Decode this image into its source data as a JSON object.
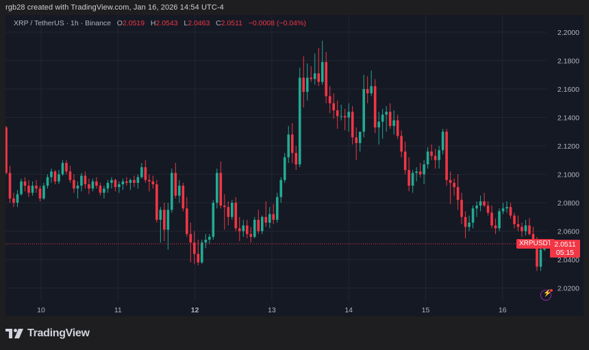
{
  "credit": "rgb28 created with TradingView.com, Jan 16, 2026 14:54 UTC-4",
  "legend": {
    "symbol": "XRP / TetherUS · 1h · Binance",
    "o_label": "O",
    "o": "2.0519",
    "h_label": "H",
    "h": "2.0543",
    "l_label": "L",
    "l": "2.0463",
    "c_label": "C",
    "c": "2.0511",
    "change": "−0.0008 (−0.04%)"
  },
  "last_price": {
    "symbol_tag": "XRPUSDT",
    "price": "2.0511",
    "countdown": "05:15"
  },
  "brand": "TradingView",
  "colors": {
    "up": "#22ab94",
    "down": "#f23645",
    "background": "#151924",
    "page": "#1e1e20",
    "grid": "#232632",
    "text": "#b2b5be"
  },
  "chart_data": {
    "type": "candlestick",
    "title": "XRP / TetherUS · 1h · Binance",
    "xlabel": "",
    "ylabel": "",
    "x_ticks": [
      "10",
      "11",
      "12",
      "13",
      "14",
      "15",
      "16"
    ],
    "y_ticks": [
      "2.2000",
      "2.1800",
      "2.1600",
      "2.1400",
      "2.1200",
      "2.1000",
      "2.0800",
      "2.0600",
      "2.0400",
      "2.0200"
    ],
    "ylim": [
      2.008,
      2.204
    ],
    "grid": true,
    "last_price": 2.0511,
    "candles_approx_path": [
      [
        2.133,
        2.134,
        2.1,
        2.101
      ],
      [
        2.101,
        2.106,
        2.08,
        2.083
      ],
      [
        2.083,
        2.087,
        2.077,
        2.08
      ],
      [
        2.08,
        2.089,
        2.077,
        2.086
      ],
      [
        2.086,
        2.097,
        2.085,
        2.095
      ],
      [
        2.095,
        2.098,
        2.088,
        2.092
      ],
      [
        2.092,
        2.096,
        2.084,
        2.087
      ],
      [
        2.087,
        2.095,
        2.085,
        2.092
      ],
      [
        2.092,
        2.096,
        2.087,
        2.09
      ],
      [
        2.09,
        2.092,
        2.081,
        2.083
      ],
      [
        2.083,
        2.094,
        2.082,
        2.092
      ],
      [
        2.092,
        2.1,
        2.09,
        2.098
      ],
      [
        2.098,
        2.104,
        2.094,
        2.102
      ],
      [
        2.102,
        2.103,
        2.093,
        2.095
      ],
      [
        2.095,
        2.103,
        2.093,
        2.1
      ],
      [
        2.1,
        2.11,
        2.099,
        2.108
      ],
      [
        2.108,
        2.11,
        2.1,
        2.102
      ],
      [
        2.102,
        2.106,
        2.094,
        2.096
      ],
      [
        2.096,
        2.1,
        2.087,
        2.09
      ],
      [
        2.09,
        2.095,
        2.083,
        2.092
      ],
      [
        2.092,
        2.101,
        2.088,
        2.099
      ],
      [
        2.099,
        2.102,
        2.09,
        2.093
      ],
      [
        2.093,
        2.097,
        2.086,
        2.09
      ],
      [
        2.09,
        2.097,
        2.088,
        2.095
      ],
      [
        2.095,
        2.098,
        2.09,
        2.092
      ],
      [
        2.092,
        2.094,
        2.085,
        2.087
      ],
      [
        2.087,
        2.092,
        2.083,
        2.09
      ],
      [
        2.09,
        2.096,
        2.087,
        2.094
      ],
      [
        2.094,
        2.098,
        2.09,
        2.096
      ],
      [
        2.096,
        2.097,
        2.088,
        2.091
      ],
      [
        2.091,
        2.095,
        2.087,
        2.093
      ],
      [
        2.093,
        2.097,
        2.089,
        2.095
      ],
      [
        2.095,
        2.098,
        2.092,
        2.094
      ],
      [
        2.094,
        2.097,
        2.089,
        2.096
      ],
      [
        2.096,
        2.099,
        2.091,
        2.094
      ],
      [
        2.094,
        2.1,
        2.09,
        2.098
      ],
      [
        2.098,
        2.108,
        2.097,
        2.105
      ],
      [
        2.105,
        2.11,
        2.094,
        2.096
      ],
      [
        2.096,
        2.1,
        2.088,
        2.095
      ],
      [
        2.095,
        2.099,
        2.09,
        2.093
      ],
      [
        2.093,
        2.096,
        2.066,
        2.068
      ],
      [
        2.068,
        2.077,
        2.052,
        2.075
      ],
      [
        2.075,
        2.08,
        2.053,
        2.061
      ],
      [
        2.061,
        2.08,
        2.047,
        2.075
      ],
      [
        2.075,
        2.104,
        2.073,
        2.101
      ],
      [
        2.101,
        2.108,
        2.083,
        2.085
      ],
      [
        2.085,
        2.096,
        2.08,
        2.092
      ],
      [
        2.092,
        2.094,
        2.074,
        2.076
      ],
      [
        2.076,
        2.084,
        2.056,
        2.058
      ],
      [
        2.058,
        2.066,
        2.038,
        2.052
      ],
      [
        2.052,
        2.06,
        2.037,
        2.044
      ],
      [
        2.044,
        2.054,
        2.036,
        2.038
      ],
      [
        2.038,
        2.054,
        2.037,
        2.052
      ],
      [
        2.052,
        2.058,
        2.048,
        2.054
      ],
      [
        2.054,
        2.058,
        2.051,
        2.056
      ],
      [
        2.056,
        2.082,
        2.054,
        2.08
      ],
      [
        2.08,
        2.104,
        2.076,
        2.101
      ],
      [
        2.101,
        2.109,
        2.076,
        2.078
      ],
      [
        2.078,
        2.086,
        2.061,
        2.077
      ],
      [
        2.077,
        2.081,
        2.064,
        2.07
      ],
      [
        2.07,
        2.082,
        2.068,
        2.08
      ],
      [
        2.08,
        2.084,
        2.06,
        2.062
      ],
      [
        2.062,
        2.07,
        2.053,
        2.06
      ],
      [
        2.06,
        2.068,
        2.056,
        2.064
      ],
      [
        2.064,
        2.068,
        2.055,
        2.058
      ],
      [
        2.058,
        2.063,
        2.052,
        2.056
      ],
      [
        2.056,
        2.07,
        2.055,
        2.068
      ],
      [
        2.068,
        2.075,
        2.058,
        2.06
      ],
      [
        2.06,
        2.071,
        2.058,
        2.07
      ],
      [
        2.07,
        2.081,
        2.063,
        2.066
      ],
      [
        2.066,
        2.077,
        2.062,
        2.072
      ],
      [
        2.072,
        2.079,
        2.065,
        2.068
      ],
      [
        2.068,
        2.087,
        2.066,
        2.084
      ],
      [
        2.084,
        2.098,
        2.08,
        2.096
      ],
      [
        2.096,
        2.115,
        2.094,
        2.112
      ],
      [
        2.112,
        2.134,
        2.108,
        2.128
      ],
      [
        2.128,
        2.136,
        2.108,
        2.115
      ],
      [
        2.115,
        2.12,
        2.103,
        2.107
      ],
      [
        2.107,
        2.175,
        2.105,
        2.168
      ],
      [
        2.168,
        2.183,
        2.147,
        2.158
      ],
      [
        2.158,
        2.178,
        2.152,
        2.168
      ],
      [
        2.168,
        2.176,
        2.165,
        2.167
      ],
      [
        2.167,
        2.185,
        2.163,
        2.171
      ],
      [
        2.171,
        2.189,
        2.162,
        2.165
      ],
      [
        2.165,
        2.194,
        2.163,
        2.179
      ],
      [
        2.179,
        2.186,
        2.15,
        2.155
      ],
      [
        2.155,
        2.162,
        2.143,
        2.15
      ],
      [
        2.15,
        2.157,
        2.139,
        2.145
      ],
      [
        2.145,
        2.152,
        2.132,
        2.141
      ],
      [
        2.141,
        2.149,
        2.138,
        2.141
      ],
      [
        2.141,
        2.146,
        2.131,
        2.14
      ],
      [
        2.14,
        2.15,
        2.13,
        2.144
      ],
      [
        2.144,
        2.148,
        2.121,
        2.126
      ],
      [
        2.126,
        2.133,
        2.11,
        2.122
      ],
      [
        2.122,
        2.129,
        2.116,
        2.13
      ],
      [
        2.13,
        2.17,
        2.126,
        2.16
      ],
      [
        2.16,
        2.169,
        2.15,
        2.157
      ],
      [
        2.157,
        2.173,
        2.155,
        2.162
      ],
      [
        2.162,
        2.167,
        2.129,
        2.133
      ],
      [
        2.133,
        2.144,
        2.121,
        2.137
      ],
      [
        2.137,
        2.146,
        2.125,
        2.142
      ],
      [
        2.142,
        2.148,
        2.13,
        2.144
      ],
      [
        2.144,
        2.15,
        2.132,
        2.134
      ],
      [
        2.134,
        2.145,
        2.128,
        2.138
      ],
      [
        2.138,
        2.142,
        2.125,
        2.127
      ],
      [
        2.127,
        2.131,
        2.112,
        2.116
      ],
      [
        2.116,
        2.123,
        2.1,
        2.103
      ],
      [
        2.103,
        2.112,
        2.088,
        2.092
      ],
      [
        2.092,
        2.103,
        2.087,
        2.101
      ],
      [
        2.101,
        2.105,
        2.095,
        2.102
      ],
      [
        2.102,
        2.108,
        2.098,
        2.1
      ],
      [
        2.1,
        2.11,
        2.093,
        2.107
      ],
      [
        2.107,
        2.119,
        2.104,
        2.116
      ],
      [
        2.116,
        2.121,
        2.11,
        2.113
      ],
      [
        2.113,
        2.118,
        2.104,
        2.11
      ],
      [
        2.11,
        2.12,
        2.104,
        2.117
      ],
      [
        2.117,
        2.132,
        2.114,
        2.13
      ],
      [
        2.13,
        2.132,
        2.092,
        2.096
      ],
      [
        2.096,
        2.102,
        2.079,
        2.094
      ],
      [
        2.094,
        2.097,
        2.085,
        2.091
      ],
      [
        2.091,
        2.1,
        2.075,
        2.082
      ],
      [
        2.082,
        2.087,
        2.065,
        2.07
      ],
      [
        2.07,
        2.074,
        2.055,
        2.063
      ],
      [
        2.063,
        2.071,
        2.06,
        2.066
      ],
      [
        2.066,
        2.078,
        2.062,
        2.076
      ],
      [
        2.076,
        2.081,
        2.07,
        2.078
      ],
      [
        2.078,
        2.085,
        2.074,
        2.081
      ],
      [
        2.081,
        2.087,
        2.077,
        2.078
      ],
      [
        2.078,
        2.081,
        2.071,
        2.073
      ],
      [
        2.073,
        2.078,
        2.062,
        2.064
      ],
      [
        2.064,
        2.069,
        2.058,
        2.062
      ],
      [
        2.062,
        2.076,
        2.06,
        2.074
      ],
      [
        2.074,
        2.08,
        2.072,
        2.076
      ],
      [
        2.076,
        2.081,
        2.073,
        2.077
      ],
      [
        2.077,
        2.08,
        2.069,
        2.071
      ],
      [
        2.071,
        2.073,
        2.062,
        2.065
      ],
      [
        2.065,
        2.071,
        2.06,
        2.063
      ],
      [
        2.063,
        2.066,
        2.056,
        2.06
      ],
      [
        2.06,
        2.068,
        2.057,
        2.064
      ],
      [
        2.064,
        2.069,
        2.057,
        2.058
      ],
      [
        2.058,
        2.063,
        2.053,
        2.054
      ],
      [
        2.054,
        2.056,
        2.032,
        2.035
      ],
      [
        2.035,
        2.05,
        2.032,
        2.047
      ],
      [
        2.047,
        2.054,
        2.046,
        2.051
      ]
    ]
  }
}
